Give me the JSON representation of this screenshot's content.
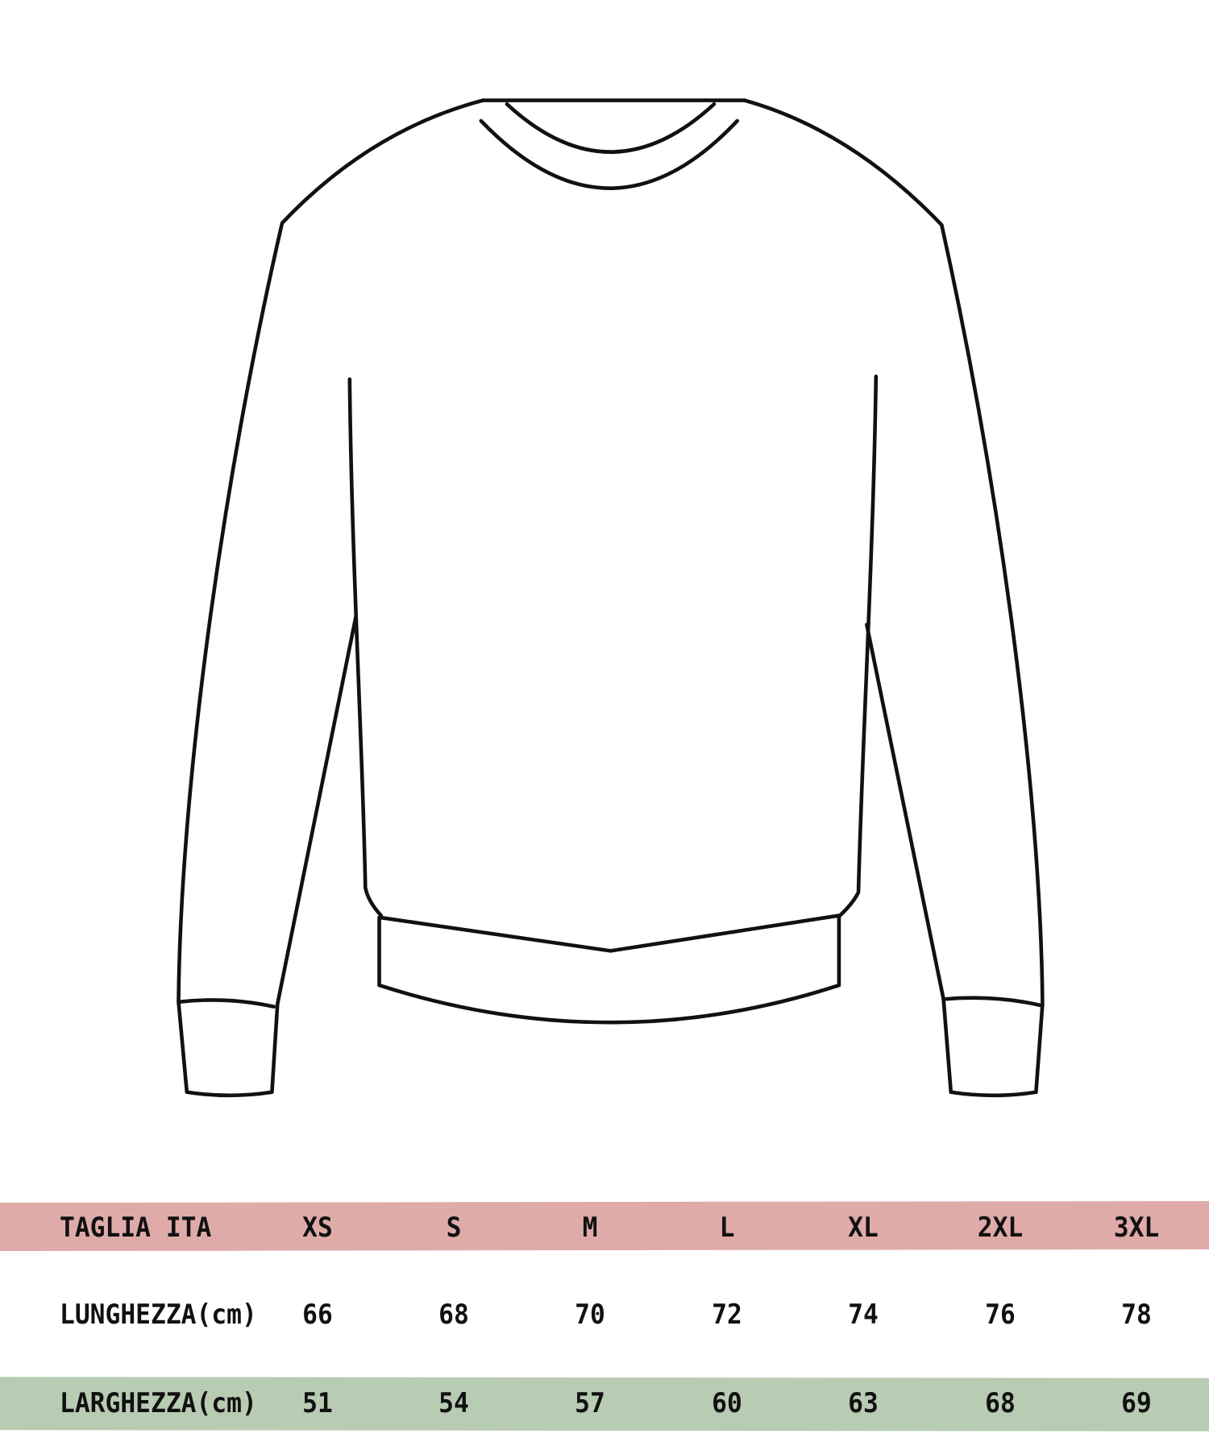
{
  "colors": {
    "header_band": "#dfaba8",
    "width_band": "#b8ccb3",
    "outline": "#111111"
  },
  "illustration": "sweater-outline",
  "size_table": {
    "header": {
      "label": "TAGLIA ITA",
      "values": [
        "XS",
        "S",
        "M",
        "L",
        "XL",
        "2XL",
        "3XL"
      ]
    },
    "rows": [
      {
        "label": "LUNGHEZZA(cm)",
        "values": [
          "66",
          "68",
          "70",
          "72",
          "74",
          "76",
          "78"
        ]
      },
      {
        "label": "LARGHEZZA(cm)",
        "values": [
          "51",
          "54",
          "57",
          "60",
          "63",
          "68",
          "69"
        ]
      }
    ]
  }
}
